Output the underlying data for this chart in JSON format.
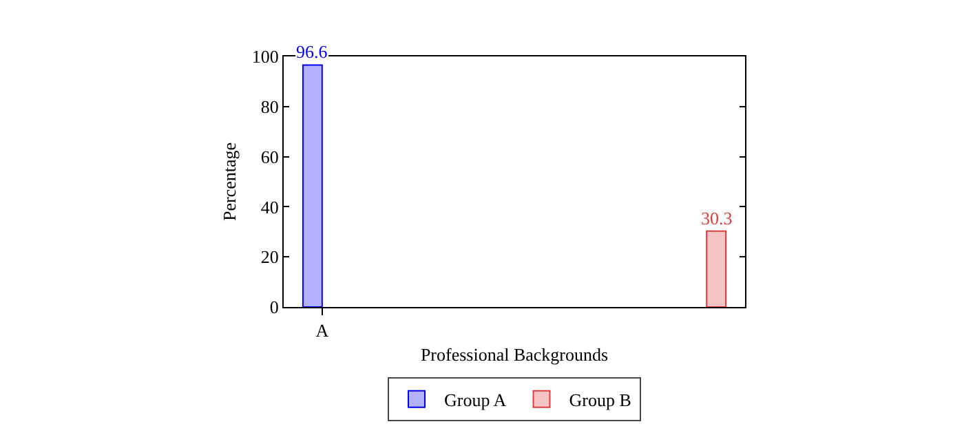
{
  "chart_data": {
    "type": "bar",
    "xlabel": "Professional Backgrounds",
    "ylabel": "Percentage",
    "categories": [
      "A",
      null
    ],
    "series": [
      {
        "name": "Group A",
        "color": "#0000ff",
        "values": [
          96.6,
          null
        ]
      },
      {
        "name": "Group B",
        "color": "#e03c3c",
        "values": [
          null,
          30.3
        ]
      }
    ],
    "ylim": [
      0,
      100
    ],
    "yticks": [
      0,
      20,
      40,
      60,
      80,
      100
    ],
    "grid": false,
    "legend": "bottom",
    "data_labels": true
  }
}
